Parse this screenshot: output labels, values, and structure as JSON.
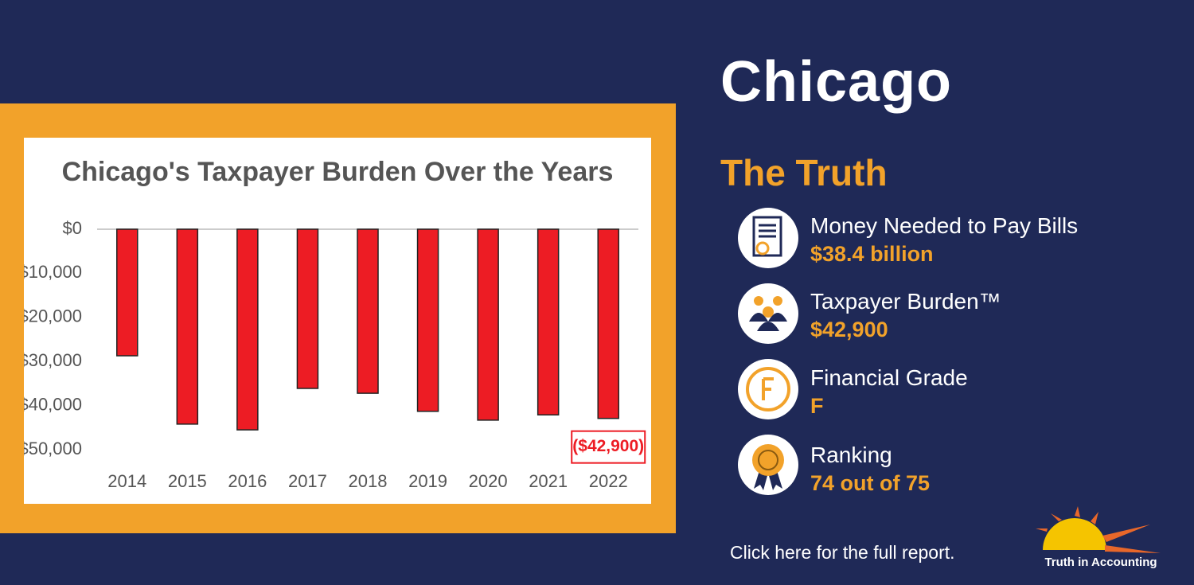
{
  "chart_data": {
    "type": "bar",
    "title": "Chicago's Taxpayer Burden Over the Years",
    "categories": [
      "2014",
      "2015",
      "2016",
      "2017",
      "2018",
      "2019",
      "2020",
      "2021",
      "2022"
    ],
    "values": [
      -28700,
      -44200,
      -45500,
      -36100,
      -37200,
      -41300,
      -43300,
      -42100,
      -42900
    ],
    "value_labels": [
      null,
      null,
      null,
      null,
      null,
      null,
      null,
      null,
      "($42,900)"
    ],
    "color": "#ed1c24",
    "ylim": [
      -55000,
      0
    ],
    "yticks": [
      {
        "value": 0,
        "label": "$0"
      },
      {
        "value": -10000,
        "label": "$10,000"
      },
      {
        "value": -20000,
        "label": "$20,000"
      },
      {
        "value": -30000,
        "label": "$30,000"
      },
      {
        "value": -40000,
        "label": "$40,000"
      },
      {
        "value": -50000,
        "label": "$50,000"
      }
    ]
  },
  "header": {
    "title": "Chicago",
    "subtitle": "The Truth"
  },
  "items": [
    {
      "label": "Money Needed to Pay Bills",
      "value": "$38.4 billion"
    },
    {
      "label": "Taxpayer Burden™",
      "value": "$42,900"
    },
    {
      "label": "Financial Grade",
      "value": "F"
    },
    {
      "label": "Ranking",
      "value": "74 out of 75"
    }
  ],
  "footer": {
    "link": "Click here for the full report.",
    "logo": "Truth in Accounting"
  }
}
